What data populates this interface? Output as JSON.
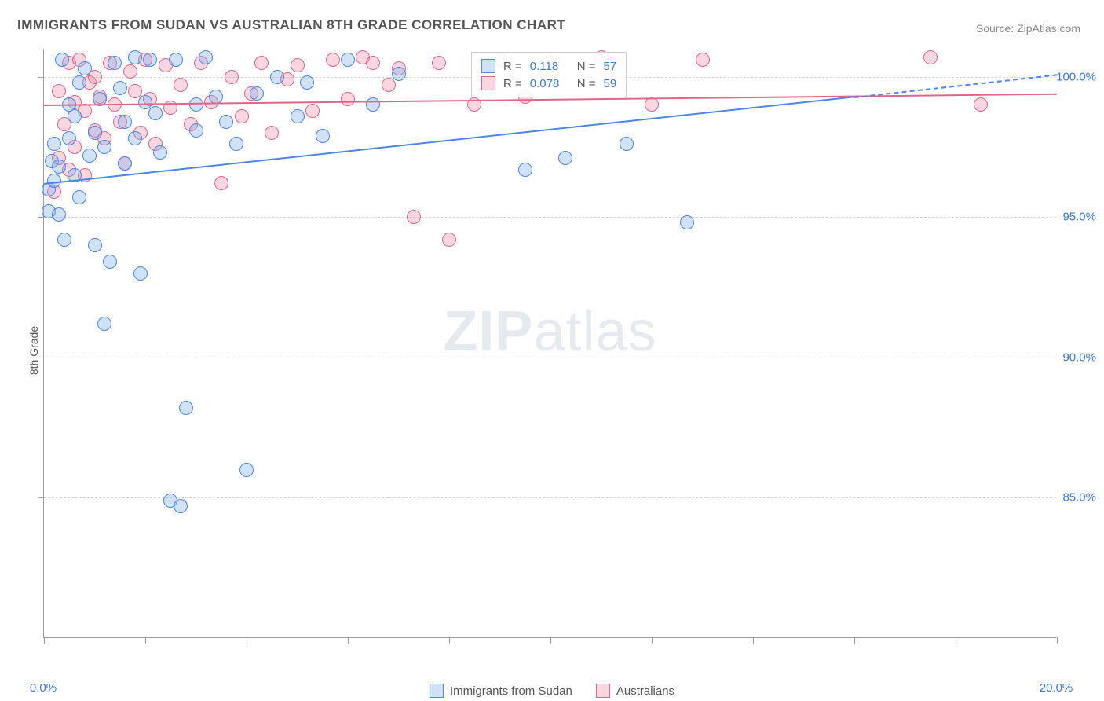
{
  "title": "IMMIGRANTS FROM SUDAN VS AUSTRALIAN 8TH GRADE CORRELATION CHART",
  "source": "Source: ZipAtlas.com",
  "y_axis_label": "8th Grade",
  "watermark": {
    "bold": "ZIP",
    "rest": "atlas"
  },
  "chart": {
    "type": "scatter",
    "xlim": [
      0,
      20
    ],
    "ylim": [
      80,
      101
    ],
    "x_ticks": [
      0,
      2,
      4,
      6,
      8,
      10,
      12,
      14,
      16,
      18,
      20
    ],
    "y_grid": [
      85,
      90,
      95,
      100
    ],
    "x_labels": [
      {
        "v": 0,
        "t": "0.0%"
      },
      {
        "v": 20,
        "t": "20.0%"
      }
    ],
    "y_labels": [
      {
        "v": 85,
        "t": "85.0%"
      },
      {
        "v": 90,
        "t": "90.0%"
      },
      {
        "v": 95,
        "t": "95.0%"
      },
      {
        "v": 100,
        "t": "100.0%"
      }
    ],
    "background_color": "#ffffff",
    "grid_color": "#d5d5d5",
    "marker_radius": 9,
    "series": [
      {
        "name": "Immigrants from Sudan",
        "label": "Immigrants from Sudan",
        "stroke": "#4a86e8",
        "fill": "rgba(120,170,235,0.35)",
        "r_value": "0.118",
        "n_value": "57",
        "trend": {
          "x1": 0,
          "y1": 96.2,
          "x2": 16,
          "y2": 99.3
        },
        "trend_ext": {
          "x1": 16,
          "y1": 99.3,
          "x2": 20,
          "y2": 100.1
        },
        "points": [
          [
            0.1,
            96.0
          ],
          [
            0.1,
            95.2
          ],
          [
            0.15,
            97.0
          ],
          [
            0.2,
            96.3
          ],
          [
            0.2,
            97.6
          ],
          [
            0.3,
            95.1
          ],
          [
            0.3,
            96.8
          ],
          [
            0.35,
            100.6
          ],
          [
            0.4,
            94.2
          ],
          [
            0.5,
            97.8
          ],
          [
            0.5,
            99.0
          ],
          [
            0.6,
            98.6
          ],
          [
            0.6,
            96.5
          ],
          [
            0.7,
            99.8
          ],
          [
            0.7,
            95.7
          ],
          [
            0.8,
            100.3
          ],
          [
            0.9,
            97.2
          ],
          [
            1.0,
            98.0
          ],
          [
            1.0,
            94.0
          ],
          [
            1.1,
            99.2
          ],
          [
            1.2,
            97.5
          ],
          [
            1.2,
            91.2
          ],
          [
            1.3,
            93.4
          ],
          [
            1.4,
            100.5
          ],
          [
            1.5,
            99.6
          ],
          [
            1.6,
            96.9
          ],
          [
            1.6,
            98.4
          ],
          [
            1.8,
            100.7
          ],
          [
            1.8,
            97.8
          ],
          [
            1.9,
            93.0
          ],
          [
            2.0,
            99.1
          ],
          [
            2.1,
            100.6
          ],
          [
            2.2,
            98.7
          ],
          [
            2.3,
            97.3
          ],
          [
            2.5,
            84.9
          ],
          [
            2.6,
            100.6
          ],
          [
            2.7,
            84.7
          ],
          [
            2.8,
            88.2
          ],
          [
            3.0,
            99.0
          ],
          [
            3.0,
            98.1
          ],
          [
            3.2,
            100.7
          ],
          [
            3.4,
            99.3
          ],
          [
            3.6,
            98.4
          ],
          [
            3.8,
            97.6
          ],
          [
            4.0,
            86.0
          ],
          [
            4.2,
            99.4
          ],
          [
            4.6,
            100.0
          ],
          [
            5.0,
            98.6
          ],
          [
            5.2,
            99.8
          ],
          [
            5.5,
            97.9
          ],
          [
            6.0,
            100.6
          ],
          [
            6.5,
            99.0
          ],
          [
            7.0,
            100.1
          ],
          [
            9.5,
            96.7
          ],
          [
            10.3,
            97.1
          ],
          [
            11.5,
            97.6
          ],
          [
            12.7,
            94.8
          ]
        ]
      },
      {
        "name": "Australians",
        "label": "Australians",
        "stroke": "#e06688",
        "fill": "rgba(235,140,170,0.35)",
        "r_value": "0.078",
        "n_value": "59",
        "trend": {
          "x1": 0,
          "y1": 99.0,
          "x2": 20,
          "y2": 99.4
        },
        "points": [
          [
            0.2,
            95.9
          ],
          [
            0.3,
            97.1
          ],
          [
            0.3,
            99.5
          ],
          [
            0.4,
            98.3
          ],
          [
            0.5,
            96.7
          ],
          [
            0.5,
            100.5
          ],
          [
            0.6,
            99.1
          ],
          [
            0.6,
            97.5
          ],
          [
            0.7,
            100.6
          ],
          [
            0.8,
            98.8
          ],
          [
            0.8,
            96.5
          ],
          [
            0.9,
            99.8
          ],
          [
            1.0,
            98.1
          ],
          [
            1.0,
            100.0
          ],
          [
            1.1,
            99.3
          ],
          [
            1.2,
            97.8
          ],
          [
            1.3,
            100.5
          ],
          [
            1.4,
            99.0
          ],
          [
            1.5,
            98.4
          ],
          [
            1.6,
            96.9
          ],
          [
            1.7,
            100.2
          ],
          [
            1.8,
            99.5
          ],
          [
            1.9,
            98.0
          ],
          [
            2.0,
            100.6
          ],
          [
            2.1,
            99.2
          ],
          [
            2.2,
            97.6
          ],
          [
            2.4,
            100.4
          ],
          [
            2.5,
            98.9
          ],
          [
            2.7,
            99.7
          ],
          [
            2.9,
            98.3
          ],
          [
            3.1,
            100.5
          ],
          [
            3.3,
            99.1
          ],
          [
            3.5,
            96.2
          ],
          [
            3.7,
            100.0
          ],
          [
            3.9,
            98.6
          ],
          [
            4.1,
            99.4
          ],
          [
            4.3,
            100.5
          ],
          [
            4.5,
            98.0
          ],
          [
            4.8,
            99.9
          ],
          [
            5.0,
            100.4
          ],
          [
            5.3,
            98.8
          ],
          [
            5.7,
            100.6
          ],
          [
            6.0,
            99.2
          ],
          [
            6.3,
            100.7
          ],
          [
            6.5,
            100.5
          ],
          [
            6.8,
            99.7
          ],
          [
            7.0,
            100.3
          ],
          [
            7.3,
            95.0
          ],
          [
            7.8,
            100.5
          ],
          [
            8.0,
            94.2
          ],
          [
            8.5,
            99.0
          ],
          [
            9.0,
            100.6
          ],
          [
            9.5,
            99.3
          ],
          [
            10.0,
            100.5
          ],
          [
            11.0,
            100.7
          ],
          [
            12.0,
            99.0
          ],
          [
            13.0,
            100.6
          ],
          [
            17.5,
            100.7
          ],
          [
            18.5,
            99.0
          ]
        ]
      }
    ]
  },
  "stats_legend": {
    "r_label": "R  =",
    "n_label": "N  ="
  },
  "bottom_legend_items": [
    {
      "series": 0
    },
    {
      "series": 1
    }
  ]
}
